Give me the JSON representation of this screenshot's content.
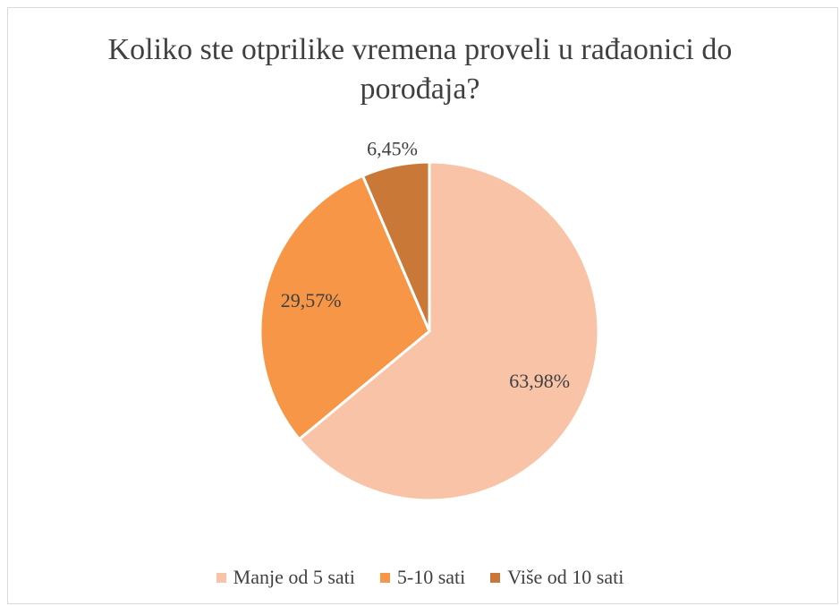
{
  "chart_data": {
    "type": "pie",
    "title": "Koliko ste otprilike vremena proveli u rađaonici do porođaja?",
    "categories": [
      "Manje od 5 sati",
      "5-10 sati",
      "Više od 10 sati"
    ],
    "values": [
      63.98,
      29.57,
      6.45
    ],
    "value_labels": [
      "63,98%",
      "29,57%",
      "6,45%"
    ],
    "colors": [
      "#f8c3a6",
      "#f79646",
      "#c97838"
    ],
    "legend": "bottom"
  }
}
